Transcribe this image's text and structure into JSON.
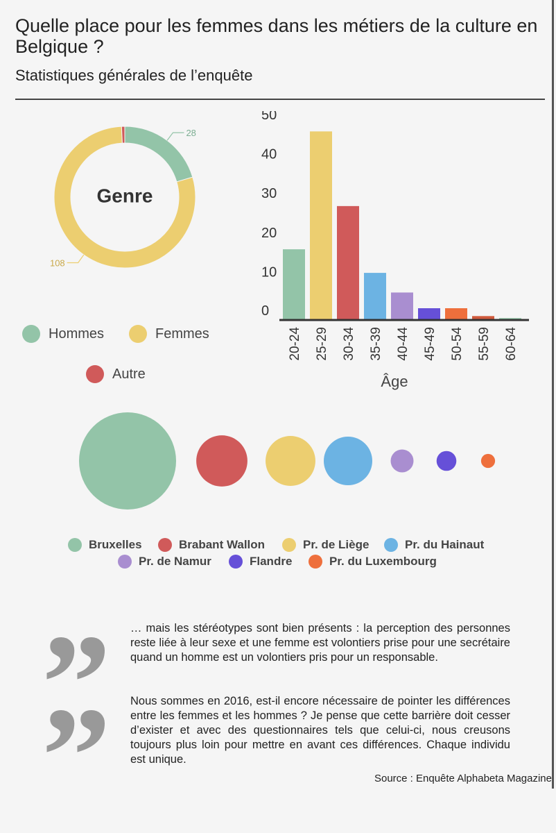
{
  "header": {
    "title": "Quelle place pour les femmes dans les métiers de la culture en Belgique ?",
    "subtitle": "Statistiques générales de l’enquête"
  },
  "chart_data": [
    {
      "type": "pie",
      "variant": "donut",
      "center_label": "Genre",
      "categories": [
        "Hommes",
        "Femmes",
        "Autre"
      ],
      "values": [
        28,
        108,
        1
      ],
      "value_labels": [
        "28",
        "108",
        ""
      ],
      "colors": [
        "#93c4a8",
        "#ecce70",
        "#d05a5a"
      ],
      "legend": [
        "Hommes",
        "Femmes",
        "Autre"
      ],
      "legend_position": "bottom"
    },
    {
      "type": "bar",
      "categories": [
        "20-24",
        "25-29",
        "30-34",
        "35-39",
        "40-44",
        "45-49",
        "50-54",
        "55-59",
        "60-64"
      ],
      "values": [
        18,
        48,
        29,
        12,
        7,
        3,
        3,
        1,
        0.5
      ],
      "colors": [
        "#93c4a8",
        "#ecce70",
        "#d05a5a",
        "#6cb3e3",
        "#a98ed0",
        "#6650d8",
        "#ee6f3c",
        "#d05a3c",
        "#93c4a8"
      ],
      "xlabel": "Âge",
      "ylabel": "",
      "yticks": [
        "0",
        "10",
        "20",
        "30",
        "40",
        "50"
      ],
      "ylim": [
        0,
        50
      ],
      "grid": false
    },
    {
      "type": "scatter",
      "variant": "bubble",
      "categories": [
        "Bruxelles",
        "Brabant Wallon",
        "Pr. de Liège",
        "Pr. du Hainaut",
        "Pr. de Namur",
        "Flandre",
        "Pr. du Luxembourg"
      ],
      "values": [
        72,
        20,
        19,
        18,
        4,
        3,
        1.5
      ],
      "colors": [
        "#93c4a8",
        "#d05a5a",
        "#ecce70",
        "#6cb3e3",
        "#a98ed0",
        "#6650d8",
        "#ee6f3c"
      ],
      "legend": [
        "Bruxelles",
        "Brabant Wallon",
        "Pr. de Liège",
        "Pr. du Hainaut",
        "Pr. de Namur",
        "Flandre",
        "Pr. du Luxembourg"
      ],
      "legend_position": "bottom"
    }
  ],
  "quotes": [
    {
      "text": "… mais les stéréotypes sont bien présents : la perception des personnes reste liée à leur sexe et une femme est volontiers prise pour une secrétaire quand un homme est un volontiers pris pour un responsable."
    },
    {
      "text": "Nous sommes en 2016, est-il encore nécessaire de pointer les différences entre les femmes et les hommes ? Je pense que cette barrière doit cesser d’exister et avec des questionnaires tels que celui-ci, nous creusons toujours plus loin pour mettre en avant ces différences. Chaque individu est unique."
    }
  ],
  "quote_glyph": "”",
  "footer": {
    "source": "Source : Enquête Alphabeta Magazine"
  }
}
